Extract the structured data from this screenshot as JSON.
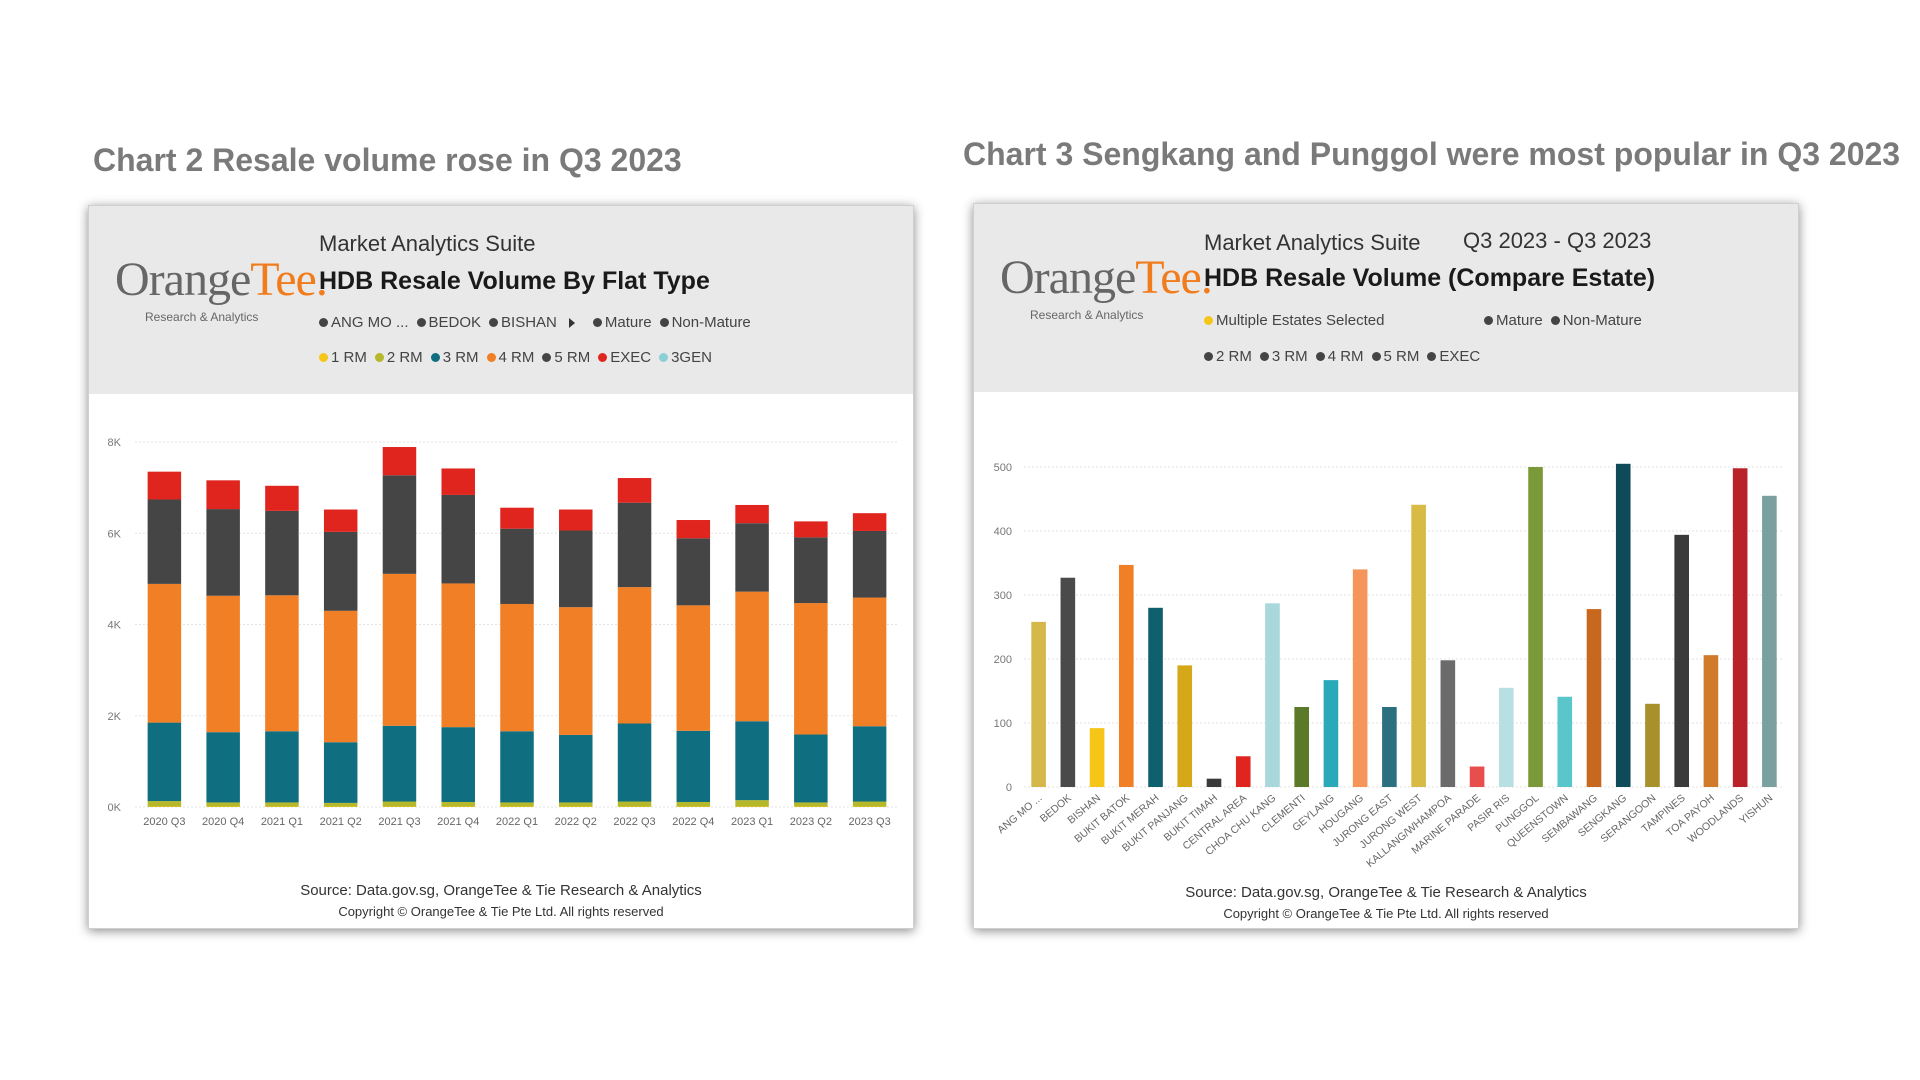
{
  "captions": {
    "left": "Chart 2 Resale volume rose in Q3 2023",
    "right": "Chart 3 Sengkang and Punggol were most popular in Q3 2023"
  },
  "brand": {
    "logo_orange": "Orange",
    "logo_tee": "Tee.",
    "logo_sub": "Research & Analytics",
    "suite": "Market Analytics Suite"
  },
  "left_panel": {
    "title": "HDB Resale Volume By Flat Type",
    "estate_filters": [
      "ANG MO ...",
      "BEDOK",
      "BISHAN"
    ],
    "maturity_legend": [
      "Mature",
      "Non-Mature"
    ],
    "flat_legend": [
      {
        "label": "1 RM",
        "color": "#f5c518"
      },
      {
        "label": "2 RM",
        "color": "#b5b82a"
      },
      {
        "label": "3 RM",
        "color": "#0f6e80"
      },
      {
        "label": "4 RM",
        "color": "#f07f26"
      },
      {
        "label": "5 RM",
        "color": "#454545"
      },
      {
        "label": "EXEC",
        "color": "#e0251f"
      },
      {
        "label": "3GEN",
        "color": "#8ccfd6"
      }
    ],
    "source": "Source: Data.gov.sg, OrangeTee & Tie Research & Analytics",
    "copyright": "Copyright © OrangeTee & Tie Pte Ltd. All rights reserved"
  },
  "right_panel": {
    "period": "Q3 2023 - Q3 2023",
    "title": "HDB Resale Volume (Compare Estate)",
    "estate_filter": "Multiple Estates Selected",
    "maturity_legend": [
      "Mature",
      "Non-Mature"
    ],
    "flat_legend": [
      "2 RM",
      "3 RM",
      "4 RM",
      "5 RM",
      "EXEC"
    ],
    "source": "Source: Data.gov.sg, OrangeTee & Tie Research & Analytics",
    "copyright": "Copyright © OrangeTee & Tie Pte Ltd. All rights reserved"
  },
  "chart_data": [
    {
      "type": "bar",
      "stacked": true,
      "title": "HDB Resale Volume By Flat Type",
      "categories": [
        "2020 Q3",
        "2020 Q4",
        "2021 Q1",
        "2021 Q2",
        "2021 Q3",
        "2021 Q4",
        "2022 Q1",
        "2022 Q2",
        "2022 Q3",
        "2022 Q4",
        "2023 Q1",
        "2023 Q2",
        "2023 Q3"
      ],
      "y_ticks": [
        "0K",
        "2K",
        "4K",
        "6K",
        "8K"
      ],
      "ylim": [
        0,
        8000
      ],
      "grid": true,
      "series": [
        {
          "name": "1 RM",
          "color": "#f5c518",
          "values": [
            10,
            10,
            10,
            10,
            10,
            10,
            10,
            10,
            10,
            10,
            10,
            10,
            10
          ]
        },
        {
          "name": "2 RM",
          "color": "#b5b82a",
          "values": [
            120,
            90,
            90,
            80,
            110,
            100,
            90,
            90,
            110,
            100,
            140,
            90,
            110
          ]
        },
        {
          "name": "3 RM",
          "color": "#0f6e80",
          "values": [
            1720,
            1540,
            1560,
            1330,
            1660,
            1640,
            1560,
            1480,
            1710,
            1560,
            1730,
            1490,
            1650
          ]
        },
        {
          "name": "4 RM",
          "color": "#f07f26",
          "values": [
            3040,
            2990,
            2980,
            2880,
            3330,
            3150,
            2790,
            2800,
            2990,
            2750,
            2840,
            2880,
            2820
          ]
        },
        {
          "name": "5 RM",
          "color": "#454545",
          "values": [
            1850,
            1900,
            1850,
            1730,
            2160,
            1940,
            1650,
            1680,
            1850,
            1470,
            1500,
            1440,
            1460
          ]
        },
        {
          "name": "EXEC",
          "color": "#e0251f",
          "values": [
            610,
            630,
            550,
            490,
            620,
            580,
            460,
            460,
            540,
            400,
            400,
            350,
            390
          ]
        },
        {
          "name": "3GEN",
          "color": "#8ccfd6",
          "values": [
            0,
            0,
            0,
            0,
            0,
            0,
            0,
            0,
            0,
            0,
            0,
            0,
            0
          ]
        }
      ]
    },
    {
      "type": "bar",
      "title": "HDB Resale Volume (Compare Estate)",
      "categories": [
        "ANG MO ...",
        "BEDOK",
        "BISHAN",
        "BUKIT BATOK",
        "BUKIT MERAH",
        "BUKIT PANJANG",
        "BUKIT TIMAH",
        "CENTRAL AREA",
        "CHOA CHU KANG",
        "CLEMENTI",
        "GEYLANG",
        "HOUGANG",
        "JURONG EAST",
        "JURONG WEST",
        "KALLANG/WHAMPOA",
        "MARINE PARADE",
        "PASIR RIS",
        "PUNGGOL",
        "QUEENSTOWN",
        "SEMBAWANG",
        "SENGKANG",
        "SERANGOON",
        "TAMPINES",
        "TOA PAYOH",
        "WOODLANDS",
        "YISHUN"
      ],
      "values": [
        258,
        327,
        92,
        347,
        280,
        190,
        13,
        48,
        287,
        125,
        167,
        340,
        125,
        441,
        198,
        32,
        155,
        500,
        141,
        278,
        505,
        130,
        394,
        206,
        498,
        455
      ],
      "colors": [
        "#d4b94a",
        "#4a4a4a",
        "#f5c518",
        "#f07f26",
        "#0f5f6e",
        "#d4a818",
        "#3a3a3a",
        "#e0251f",
        "#a8d8dc",
        "#5a7a2a",
        "#2aa9b8",
        "#f5955a",
        "#2a7080",
        "#d8bb45",
        "#6b6b6b",
        "#e84e4e",
        "#b8e0e4",
        "#7a9a3a",
        "#5ac6cc",
        "#c8681e",
        "#0e4a58",
        "#a8902a",
        "#3a3a3a",
        "#d07a2a",
        "#b82228",
        "#7aa0a0"
      ],
      "y_ticks": [
        "0",
        "100",
        "200",
        "300",
        "400",
        "500"
      ],
      "ylim": [
        0,
        500
      ],
      "grid": true
    }
  ]
}
